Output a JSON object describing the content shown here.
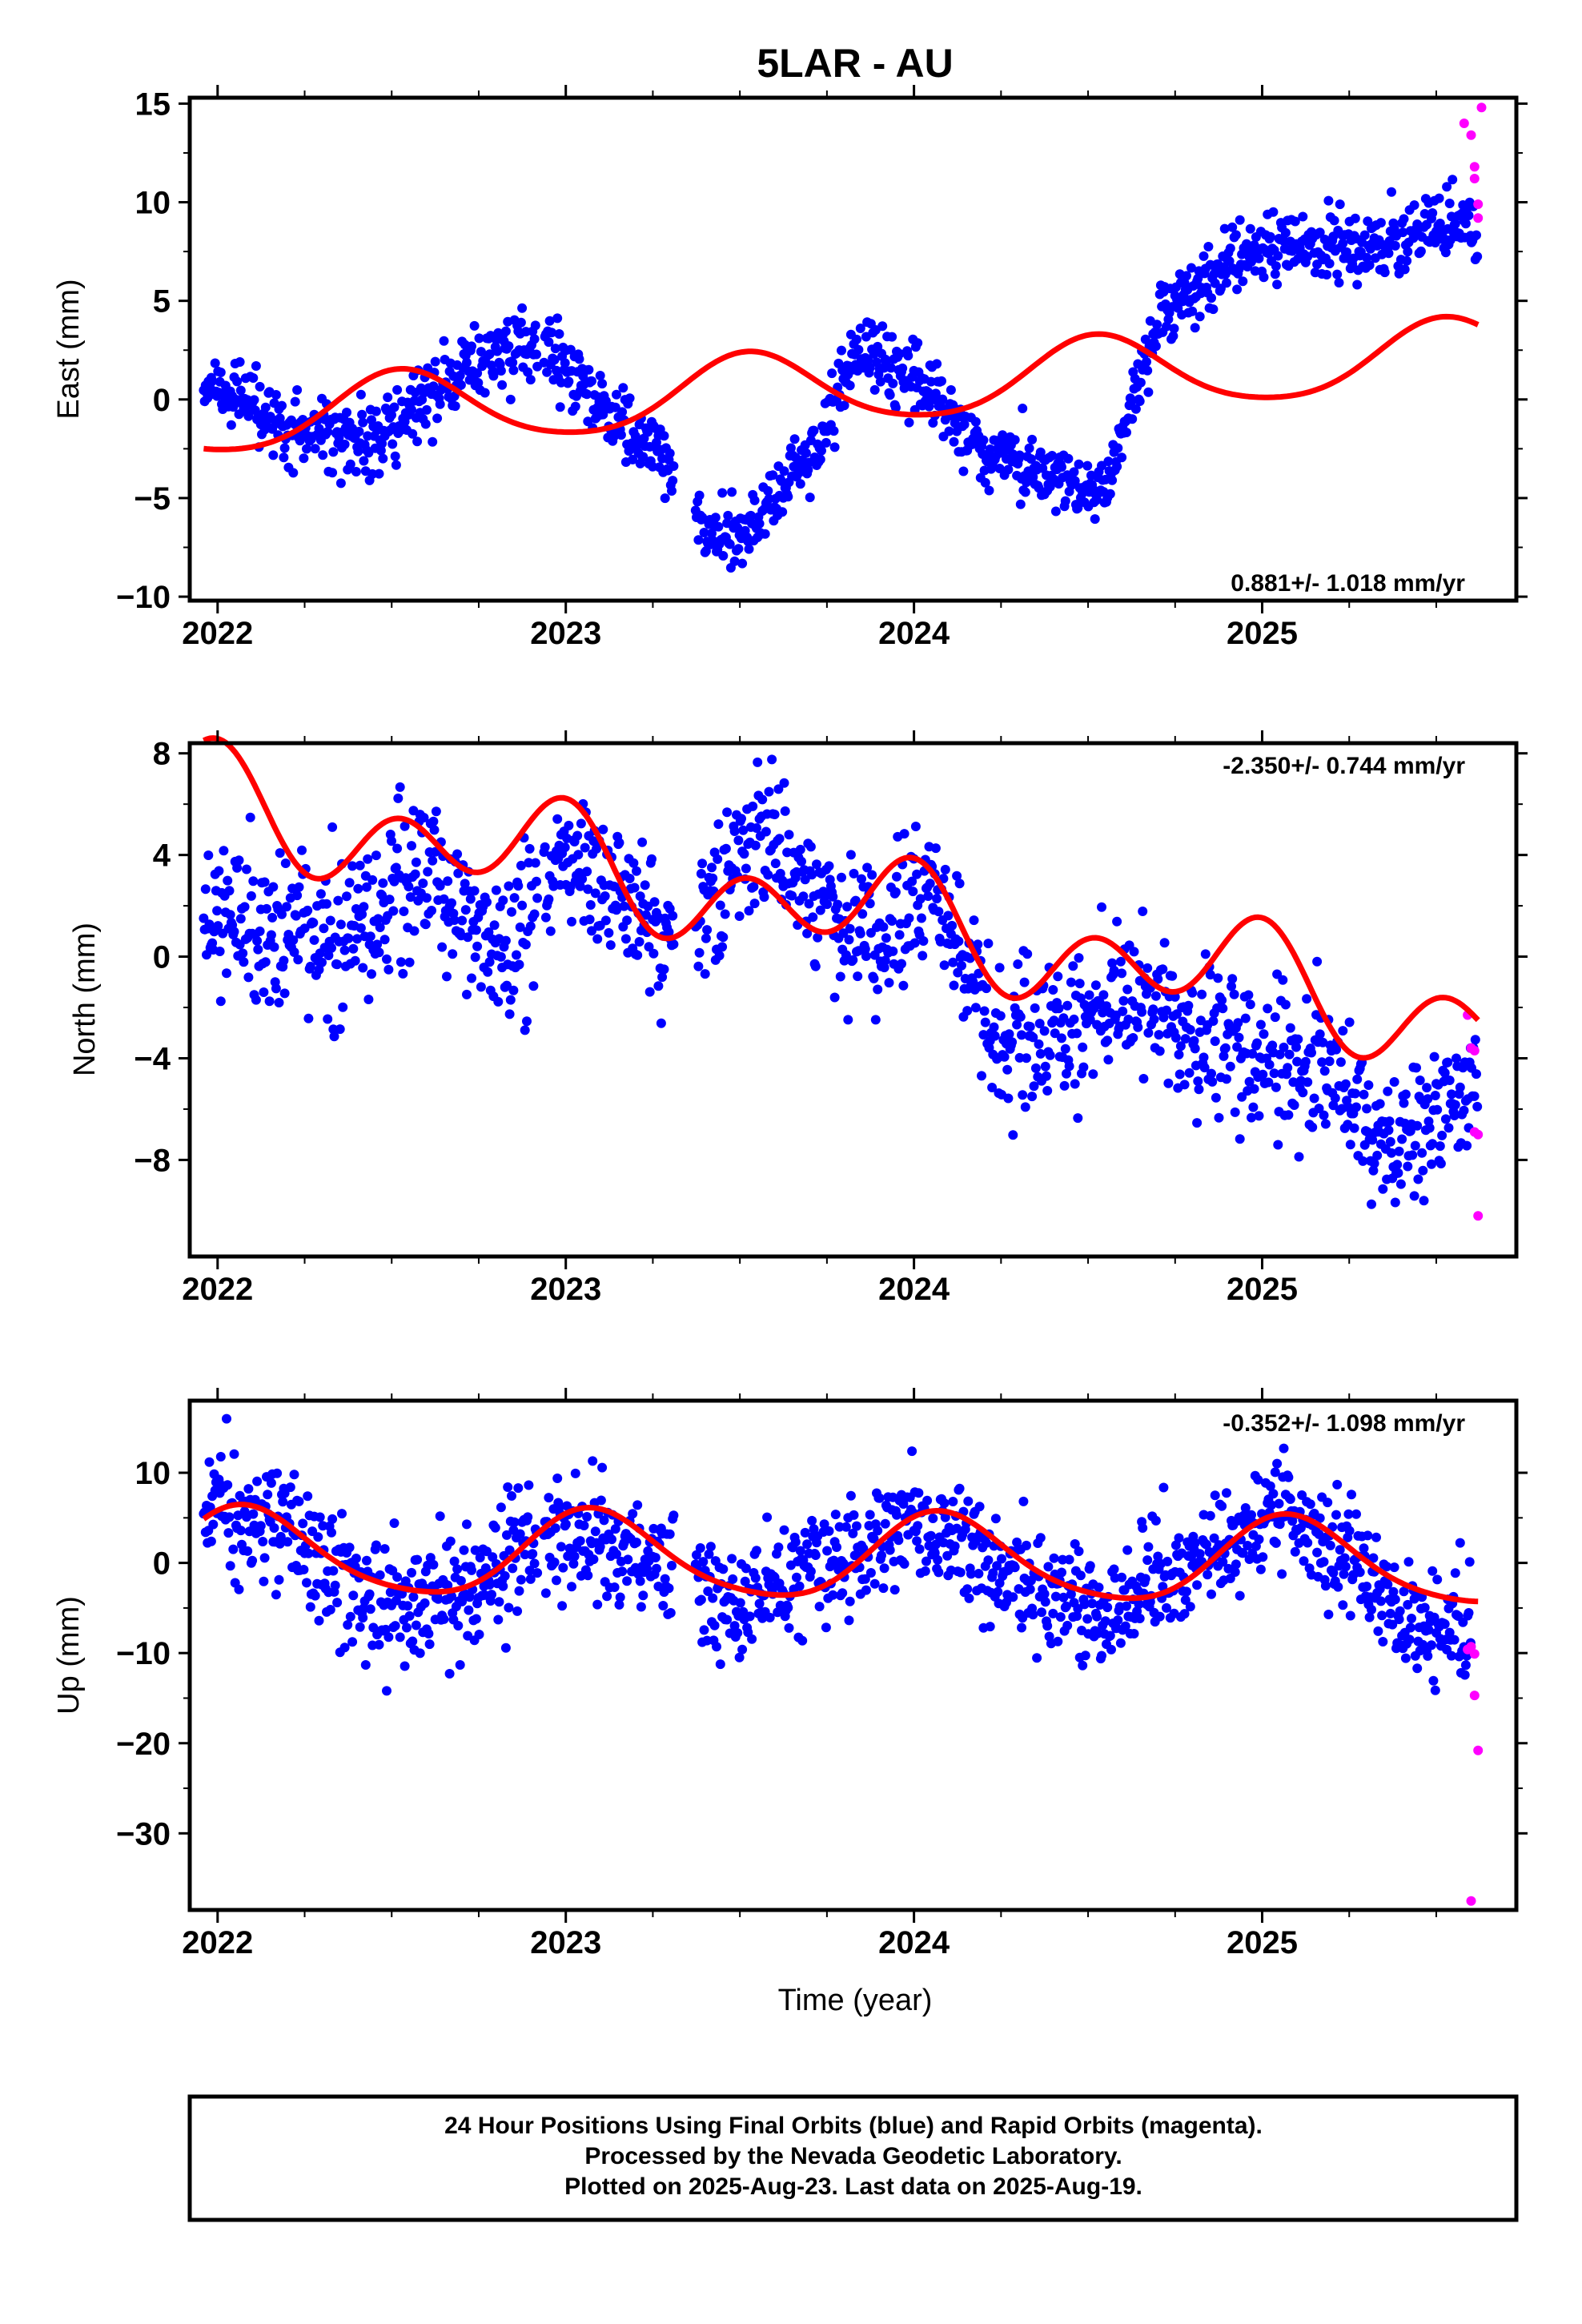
{
  "title": "5LAR - AU",
  "colors": {
    "final": "#0000ff",
    "rapid": "#ff00ff",
    "model": "#ff0000"
  },
  "chart_data": [
    {
      "type": "scatter",
      "component": "east",
      "ylabel": "East (mm)",
      "xlabel": "",
      "xlim": [
        2021.92,
        2025.73
      ],
      "ylim": [
        -10.2,
        15.3
      ],
      "xticks": [
        2022,
        2023,
        2024,
        2025
      ],
      "yticks": [
        -10,
        -5,
        0,
        5,
        10,
        15
      ],
      "annotation": "0.881+/- 1.018 mm/yr",
      "annotation_position": "bottom-right",
      "rate": 0.881,
      "seasonal": {
        "offset": 0.6,
        "s1": -0.3,
        "c1": -1.8,
        "s2": 0.05,
        "c2": 0.25
      },
      "series": [
        {
          "name": "Final Orbits",
          "color": "blue",
          "anchors_x": [
            2021.96,
            2022.2,
            2022.45,
            2022.7,
            2022.9,
            2023.0,
            2023.2,
            2023.35,
            2023.4,
            2023.5,
            2023.7,
            2023.85,
            2024.0,
            2024.2,
            2024.45,
            2024.55,
            2024.7,
            2024.9,
            2025.1,
            2025.3,
            2025.55,
            2025.62
          ],
          "anchors_y": [
            1.0,
            -1.5,
            -2.0,
            1.5,
            2.8,
            1.5,
            -2.0,
            -4.0,
            -6.5,
            -7.0,
            -3.0,
            2.5,
            1.0,
            -2.5,
            -4.5,
            -4.5,
            4.0,
            7.0,
            8.0,
            7.5,
            9.0,
            8.5
          ],
          "spread": 0.9
        },
        {
          "name": "Rapid Orbits",
          "color": "magenta",
          "points": [
            [
              2025.58,
              14.0
            ],
            [
              2025.6,
              13.4
            ],
            [
              2025.61,
              11.8
            ],
            [
              2025.61,
              11.2
            ],
            [
              2025.62,
              9.9
            ],
            [
              2025.62,
              9.2
            ],
            [
              2025.63,
              14.8
            ]
          ]
        }
      ]
    },
    {
      "type": "scatter",
      "component": "north",
      "ylabel": "North (mm)",
      "xlabel": "",
      "xlim": [
        2021.92,
        2025.73
      ],
      "ylim": [
        -11.8,
        8.4
      ],
      "xticks": [
        2022,
        2023,
        2024,
        2025
      ],
      "yticks": [
        -8,
        -4,
        0,
        4,
        8
      ],
      "annotation": "-2.350+/- 0.744 mm/yr",
      "annotation_position": "top-right",
      "rate": -2.35,
      "seasonal": {
        "offset": 1.8,
        "s1": -0.6,
        "c1": 1.0,
        "s2": 0.2,
        "c2": 1.55
      },
      "series": [
        {
          "name": "Final Orbits",
          "color": "blue",
          "anchors_x": [
            2021.96,
            2022.15,
            2022.35,
            2022.6,
            2022.8,
            2023.0,
            2023.2,
            2023.3,
            2023.4,
            2023.55,
            2023.7,
            2023.85,
            2024.05,
            2024.25,
            2024.45,
            2024.6,
            2024.8,
            2025.0,
            2025.2,
            2025.35,
            2025.5,
            2025.62
          ],
          "anchors_y": [
            1.5,
            1.0,
            0.5,
            3.5,
            0.0,
            4.0,
            2.0,
            0.5,
            2.0,
            4.5,
            3.0,
            0.5,
            2.5,
            -3.0,
            -3.5,
            -1.0,
            -3.0,
            -4.0,
            -5.0,
            -7.5,
            -6.0,
            -5.5
          ],
          "spread": 1.4
        },
        {
          "name": "Rapid Orbits",
          "color": "magenta",
          "points": [
            [
              2025.59,
              -2.3
            ],
            [
              2025.6,
              -3.6
            ],
            [
              2025.61,
              -3.7
            ],
            [
              2025.61,
              -6.9
            ],
            [
              2025.62,
              -7.0
            ],
            [
              2025.62,
              -10.2
            ]
          ]
        }
      ]
    },
    {
      "type": "scatter",
      "component": "up",
      "ylabel": "Up (mm)",
      "xlabel": "Time (year)",
      "xlim": [
        2021.92,
        2025.73
      ],
      "ylim": [
        -38.5,
        18.0
      ],
      "xticks": [
        2022,
        2023,
        2024,
        2025
      ],
      "yticks": [
        -30,
        -20,
        -10,
        0,
        10
      ],
      "annotation": "-0.352+/- 1.098 mm/yr",
      "annotation_position": "top-right",
      "rate": -0.352,
      "seasonal": {
        "offset": 0.5,
        "s1": 2.3,
        "c1": 4.1,
        "s2": 0.4,
        "c2": 0.6
      },
      "series": [
        {
          "name": "Final Orbits",
          "color": "blue",
          "anchors_x": [
            2021.96,
            2022.15,
            2022.45,
            2022.7,
            2023.0,
            2023.2,
            2023.3,
            2023.5,
            2023.75,
            2024.05,
            2024.25,
            2024.5,
            2024.75,
            2025.05,
            2025.25,
            2025.4,
            2025.6
          ],
          "anchors_y": [
            6.0,
            6.0,
            -5.0,
            -3.0,
            3.0,
            2.0,
            -1.0,
            -5.0,
            0.0,
            5.0,
            -1.0,
            -6.0,
            -1.0,
            6.0,
            1.0,
            -6.0,
            -8.0
          ],
          "spread": 3.3
        },
        {
          "name": "Rapid Orbits",
          "color": "magenta",
          "points": [
            [
              2025.59,
              -9.6
            ],
            [
              2025.6,
              -9.3
            ],
            [
              2025.61,
              -10.1
            ],
            [
              2025.61,
              -14.7
            ],
            [
              2025.62,
              -20.8
            ],
            [
              2025.6,
              -37.5
            ]
          ]
        }
      ]
    }
  ],
  "legend_lines": [
    "24 Hour Positions Using Final Orbits (blue) and Rapid Orbits (magenta).",
    "Processed by the Nevada Geodetic Laboratory.",
    "Plotted on 2025-Aug-23. Last data on 2025-Aug-19."
  ]
}
